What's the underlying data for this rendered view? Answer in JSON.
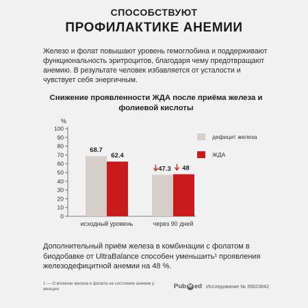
{
  "header": {
    "line1": "СПОСОБСТВУЮТ",
    "line2": "ПРОФИЛАКТИКЕ АНЕМИИ"
  },
  "intro": "Железо и фолат повышают уровень гемоглобина и поддерживают функциональность эритроцитов, благодаря чему предотвращают анемию. В результате человек избавляется от усталости и чувствует себя энергичным.",
  "chart_data": {
    "type": "bar",
    "title": "Снижение проявленности ЖДА после приёма железа и фолиевой кислоты",
    "ylabel": "%",
    "ylim": [
      0,
      100
    ],
    "yticks": [
      0,
      10,
      20,
      30,
      40,
      50,
      60,
      70,
      80,
      90,
      100
    ],
    "categories": [
      "исходный уровень",
      "через 90 дней"
    ],
    "series": [
      {
        "name": "дефицит железа",
        "values": [
          68.7,
          47.3
        ],
        "labels": [
          "68.7",
          "47.3"
        ],
        "color": "#d6cec9"
      },
      {
        "name": "ЖДА",
        "values": [
          62.4,
          48
        ],
        "labels": [
          "62.4",
          "48"
        ],
        "color": "#c91b1b"
      }
    ],
    "arrow_color": "#c91b1b",
    "legend": "right"
  },
  "bottom_text": "Дополнительный приём железа в комбинации с фолатом в биодобавке от UltraBalance способен уменьшить¹ проявления железодефицитной анемии на 48 %.",
  "footnote": "1 — О влиянии железа и фолата на состояние анемии у женщин",
  "pubmed": {
    "logo_left": "Pub",
    "logo_m": "M",
    "logo_right": "ed",
    "study": "Исследование № 35623842"
  }
}
